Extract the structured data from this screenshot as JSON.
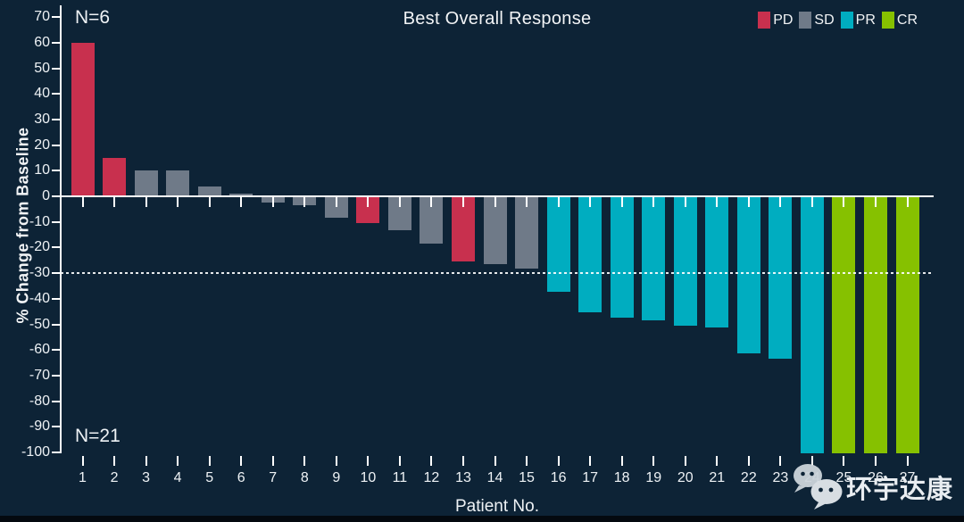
{
  "title": "Best Overall Response",
  "annotations": {
    "n_top": "N=6",
    "n_bottom": "N=21"
  },
  "y_axis": {
    "label": "% Change from Baseline",
    "ticks": [
      70,
      60,
      50,
      40,
      30,
      20,
      10,
      0,
      -10,
      -20,
      -30,
      -40,
      -50,
      -60,
      -70,
      -80,
      -90,
      -100
    ]
  },
  "x_axis": {
    "label": "Patient No."
  },
  "legend": [
    {
      "label": "PD",
      "color": "#c8304e"
    },
    {
      "label": "SD",
      "color": "#6f7a88"
    },
    {
      "label": "PR",
      "color": "#00adc0"
    },
    {
      "label": "CR",
      "color": "#86c100"
    }
  ],
  "watermark": {
    "text": "环宇达康",
    "icon": "wechat-icon"
  },
  "colors": {
    "background": "#0d2336",
    "axis": "#ffffff",
    "reference_line": "#ffffff",
    "pd": "#c8304e",
    "sd": "#6f7a88",
    "pr": "#00adc0",
    "cr": "#86c100"
  },
  "chart_data": {
    "type": "bar",
    "title": "Best Overall Response",
    "xlabel": "Patient No.",
    "ylabel": "% Change from Baseline",
    "ylim": [
      -100,
      70
    ],
    "y_tick_step": 10,
    "reference_line_y": -30,
    "grid": false,
    "legend_position": "top-right",
    "categories": [
      1,
      2,
      3,
      4,
      5,
      6,
      7,
      8,
      9,
      10,
      11,
      12,
      13,
      14,
      15,
      16,
      17,
      18,
      19,
      20,
      21,
      22,
      23,
      24,
      25,
      26,
      27
    ],
    "values": [
      60,
      15,
      10,
      10,
      4,
      1,
      -2,
      -3,
      -8,
      -10,
      -13,
      -18,
      -25,
      -26,
      -28,
      -37,
      -45,
      -47,
      -48,
      -50,
      -51,
      -61,
      -63,
      -100,
      -100,
      -100,
      -100
    ],
    "responses": [
      "PD",
      "PD",
      "SD",
      "SD",
      "SD",
      "SD",
      "SD",
      "SD",
      "SD",
      "PD",
      "SD",
      "SD",
      "PD",
      "SD",
      "SD",
      "PR",
      "PR",
      "PR",
      "PR",
      "PR",
      "PR",
      "PR",
      "PR",
      "PR",
      "CR",
      "CR",
      "CR"
    ],
    "series_annotations": [
      {
        "text": "N=6",
        "position": "top-left",
        "meaning": "patients above baseline"
      },
      {
        "text": "N=21",
        "position": "bottom-left",
        "meaning": "patients below baseline"
      }
    ]
  }
}
